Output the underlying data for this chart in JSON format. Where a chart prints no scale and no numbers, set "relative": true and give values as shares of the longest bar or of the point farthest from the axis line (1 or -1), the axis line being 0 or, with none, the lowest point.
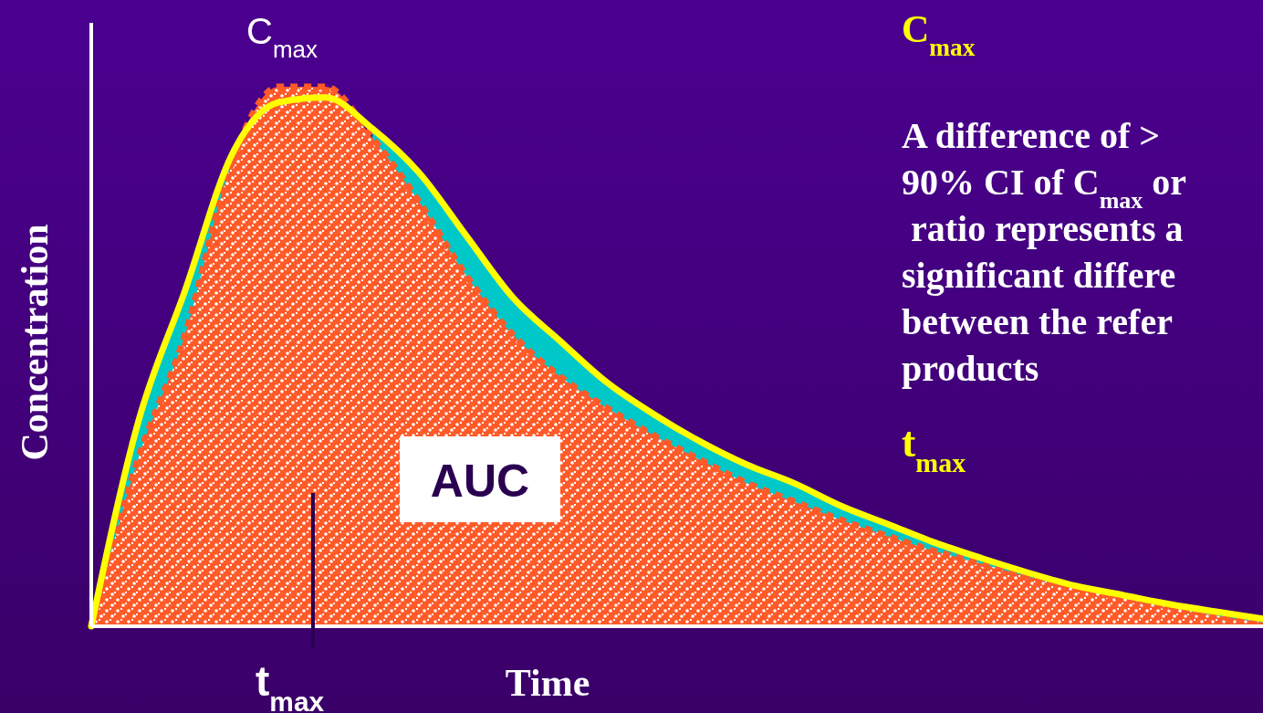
{
  "chart_data": {
    "type": "area",
    "relative": true,
    "xlabel": "Time",
    "ylabel": "Concentration",
    "categories": [
      null,
      null,
      null,
      null,
      null,
      null,
      null,
      null,
      null,
      null,
      null,
      null,
      null,
      null,
      null,
      null,
      null,
      null,
      null,
      null,
      null,
      null,
      null,
      null,
      null,
      null
    ],
    "series": [
      {
        "color": "#00c8c8",
        "values": [
          0,
          0.378,
          0.622,
          0.874,
          null,
          null,
          0.922,
          0.84,
          0.724,
          0.609,
          0.529,
          0.452,
          0.393,
          0.342,
          0.299,
          0.265,
          0.223,
          0.189,
          0.155,
          0.126,
          0.099,
          0.075,
          0.058,
          0.041,
          0.027,
          0.014
        ]
      },
      {
        "type": "line",
        "color": "#ffff00",
        "values": [
          0,
          0.378,
          0.622,
          0.874,
          0.971,
          0.98,
          0.922,
          0.84,
          0.724,
          0.609,
          0.529,
          0.452,
          0.393,
          0.342,
          0.299,
          0.265,
          0.223,
          0.189,
          0.155,
          0.126,
          0.099,
          0.075,
          0.058,
          0.041,
          0.027,
          0.014
        ]
      },
      {
        "color": "#ff5a28",
        "line_style": "dotted",
        "values": [
          0,
          0.31,
          0.54,
          0.86,
          1,
          1,
          0.905,
          0.786,
          0.65,
          0.54,
          0.463,
          0.405,
          0.354,
          0.308,
          0.265,
          0.231,
          0.197,
          0.167,
          0.139,
          0.116,
          0.092,
          0.07,
          0.053,
          0.036,
          0.02,
          0.007
        ]
      }
    ],
    "annotations": [
      "C$_{max}$",
      "AUC",
      "t$_{max}$",
      "C$_{max}$",
      "A difference of >",
      "90% CI of C$_{max}$ or",
      "ratio represents a",
      "significant differe",
      "between the refer",
      "products",
      "t$_{max}$"
    ]
  }
}
